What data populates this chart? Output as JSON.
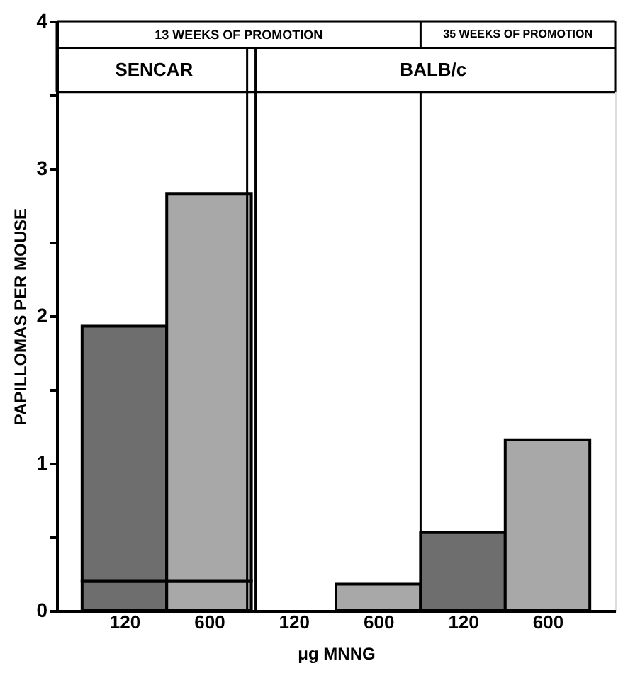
{
  "chart_data": {
    "type": "bar",
    "stacked": true,
    "categories": [
      "120",
      "600",
      "120",
      "600",
      "120",
      "600"
    ],
    "series": [
      {
        "colors": [
          "#6e6e6e",
          "#a8a8a8",
          "#6e6e6e",
          "#a8a8a8",
          "#6e6e6e",
          "#a8a8a8"
        ],
        "values": [
          0.2,
          0.2,
          null,
          0.18,
          0.53,
          1.16
        ]
      },
      {
        "colors": [
          "#6e6e6e",
          "#a8a8a8",
          "#6e6e6e",
          "#a8a8a8",
          "#6e6e6e",
          "#a8a8a8"
        ],
        "values": [
          1.73,
          2.63,
          null,
          null,
          null,
          null
        ]
      }
    ],
    "xlabel": "μg MNNG",
    "ylabel": "PAPILLOMAS PER MOUSE",
    "ylim": [
      0,
      4
    ],
    "yticks": [
      0,
      {
        "value": 0.5,
        "label": null
      },
      1,
      {
        "value": 1.5,
        "label": null
      },
      2,
      {
        "value": 2.5,
        "label": null
      },
      3,
      {
        "value": 3.5,
        "label": null
      },
      4
    ],
    "annotations": [
      "13 WEEKS OF PROMOTION",
      "35 WEEKS OF PROMOTION",
      "SENCAR",
      "BALB/c"
    ],
    "grid": false
  }
}
